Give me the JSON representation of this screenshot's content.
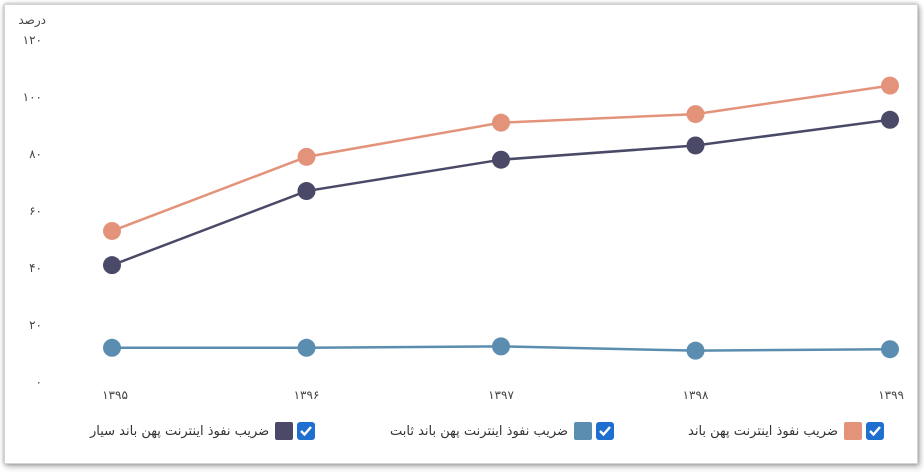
{
  "chart_data": {
    "type": "line",
    "ylabel": "درصد",
    "categories": [
      "۱۳۹۵",
      "۱۳۹۶",
      "۱۳۹۷",
      "۱۳۹۸",
      "۱۳۹۹"
    ],
    "ylim": [
      0,
      120
    ],
    "yticks": [
      "۰",
      "۲۰",
      "۴۰",
      "۶۰",
      "۸۰",
      "۱۰۰",
      "۱۲۰"
    ],
    "grid": false,
    "legend_position": "bottom",
    "series": [
      {
        "name": "ضریب نفوذ اینترنت پهن باند",
        "color": "#e3937a",
        "values": [
          53,
          79,
          91,
          94,
          104
        ]
      },
      {
        "name": "ضریب نفوذ اینترنت پهن باند سیار",
        "color": "#4a4a68",
        "values": [
          41,
          67,
          78,
          83,
          92
        ]
      },
      {
        "name": "ضریب نفوذ اینترنت پهن باند ثابت",
        "color": "#5b8db1",
        "values": [
          12,
          12,
          12.5,
          11,
          11.5
        ]
      }
    ]
  }
}
